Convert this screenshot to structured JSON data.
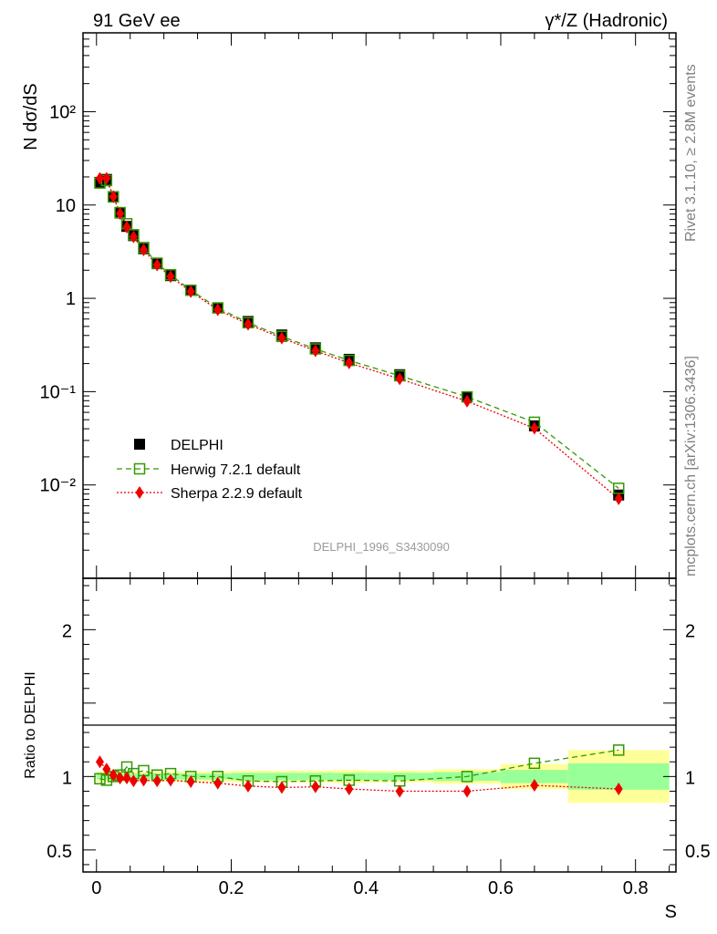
{
  "header": {
    "left": "91 GeV ee",
    "right": "γ*/Z (Hadronic)"
  },
  "side_text": {
    "rivet": "Rivet 3.1.10, ≥ 2.8M events",
    "mcplots": "mcplots.cern.ch [arXiv:1306.3436]"
  },
  "chart_data": [
    {
      "type": "scatter",
      "ylabel": "N dσ/dS",
      "yscale": "log",
      "ylim": [
        0.001,
        700
      ],
      "xlim": [
        -0.02,
        0.86
      ],
      "watermark": "DELPHI_1996_S3430090",
      "legend_position": "bottom-left",
      "yticklabels": [
        "10⁻²",
        "10⁻¹",
        "1",
        "10",
        "10²"
      ],
      "x": [
        0.005,
        0.015,
        0.025,
        0.035,
        0.045,
        0.055,
        0.07,
        0.09,
        0.11,
        0.14,
        0.18,
        0.225,
        0.275,
        0.325,
        0.375,
        0.45,
        0.55,
        0.65,
        0.775
      ],
      "series": [
        {
          "name": "DELPHI",
          "color": "#000000",
          "marker": "filled-square",
          "values": [
            17.5,
            18.8,
            12.3,
            8.2,
            5.9,
            4.7,
            3.4,
            2.35,
            1.75,
            1.22,
            0.79,
            0.565,
            0.405,
            0.295,
            0.222,
            0.152,
            0.088,
            0.043,
            0.0078
          ]
        },
        {
          "name": "Herwig 7.2.1 default",
          "color": "#339900",
          "marker": "open-square",
          "line": "dashed",
          "values": [
            17.2,
            18.3,
            12.2,
            8.3,
            6.3,
            4.8,
            3.5,
            2.38,
            1.79,
            1.22,
            0.79,
            0.548,
            0.391,
            0.287,
            0.216,
            0.148,
            0.088,
            0.047,
            0.0092
          ]
        },
        {
          "name": "Sherpa 2.2.9 default",
          "color": "#ee0000",
          "marker": "filled-diamond",
          "line": "dotted",
          "values": [
            19.3,
            19.3,
            12.3,
            8.1,
            5.8,
            4.55,
            3.3,
            2.28,
            1.71,
            1.18,
            0.755,
            0.528,
            0.375,
            0.274,
            0.203,
            0.137,
            0.079,
            0.0405,
            0.0071
          ]
        }
      ]
    },
    {
      "type": "scatter",
      "xlabel": "S",
      "ylabel": "Ratio to DELPHI",
      "ylim": [
        0.35,
        2.35
      ],
      "xlim": [
        -0.02,
        0.86
      ],
      "yticklabels": [
        "0.5",
        "1",
        "2"
      ],
      "xticklabels": [
        "0",
        "0.2",
        "0.4",
        "0.6",
        "0.8"
      ],
      "bands": {
        "edges": [
          0.0,
          0.01,
          0.02,
          0.03,
          0.04,
          0.05,
          0.06,
          0.08,
          0.1,
          0.12,
          0.16,
          0.2,
          0.25,
          0.3,
          0.35,
          0.4,
          0.5,
          0.6,
          0.7,
          0.85
        ],
        "inner_halfwidth": [
          0.02,
          0.02,
          0.02,
          0.02,
          0.02,
          0.02,
          0.02,
          0.02,
          0.02,
          0.02,
          0.02,
          0.025,
          0.025,
          0.025,
          0.025,
          0.025,
          0.03,
          0.045,
          0.09
        ],
        "outer_halfwidth": [
          0.035,
          0.035,
          0.035,
          0.035,
          0.035,
          0.035,
          0.035,
          0.035,
          0.035,
          0.035,
          0.035,
          0.04,
          0.04,
          0.04,
          0.045,
          0.04,
          0.05,
          0.085,
          0.18
        ],
        "inner_color": "#99ff99",
        "outer_color": "#ffff99"
      },
      "x": [
        0.005,
        0.015,
        0.025,
        0.035,
        0.045,
        0.055,
        0.07,
        0.09,
        0.11,
        0.14,
        0.18,
        0.225,
        0.275,
        0.325,
        0.375,
        0.45,
        0.55,
        0.65,
        0.775
      ],
      "series": [
        {
          "name": "Herwig 7.2.1 default",
          "color": "#339900",
          "values": [
            0.985,
            0.975,
            1.0,
            1.01,
            1.065,
            1.02,
            1.04,
            1.01,
            1.02,
            1.0,
            1.0,
            0.97,
            0.965,
            0.97,
            0.975,
            0.97,
            1.0,
            1.09,
            1.18
          ]
        },
        {
          "name": "Sherpa 2.2.9 default",
          "color": "#ee0000",
          "values": [
            1.1,
            1.05,
            1.01,
            0.99,
            0.99,
            0.97,
            0.975,
            0.97,
            0.975,
            0.965,
            0.955,
            0.935,
            0.925,
            0.93,
            0.915,
            0.9,
            0.9,
            0.94,
            0.915
          ]
        }
      ]
    }
  ]
}
